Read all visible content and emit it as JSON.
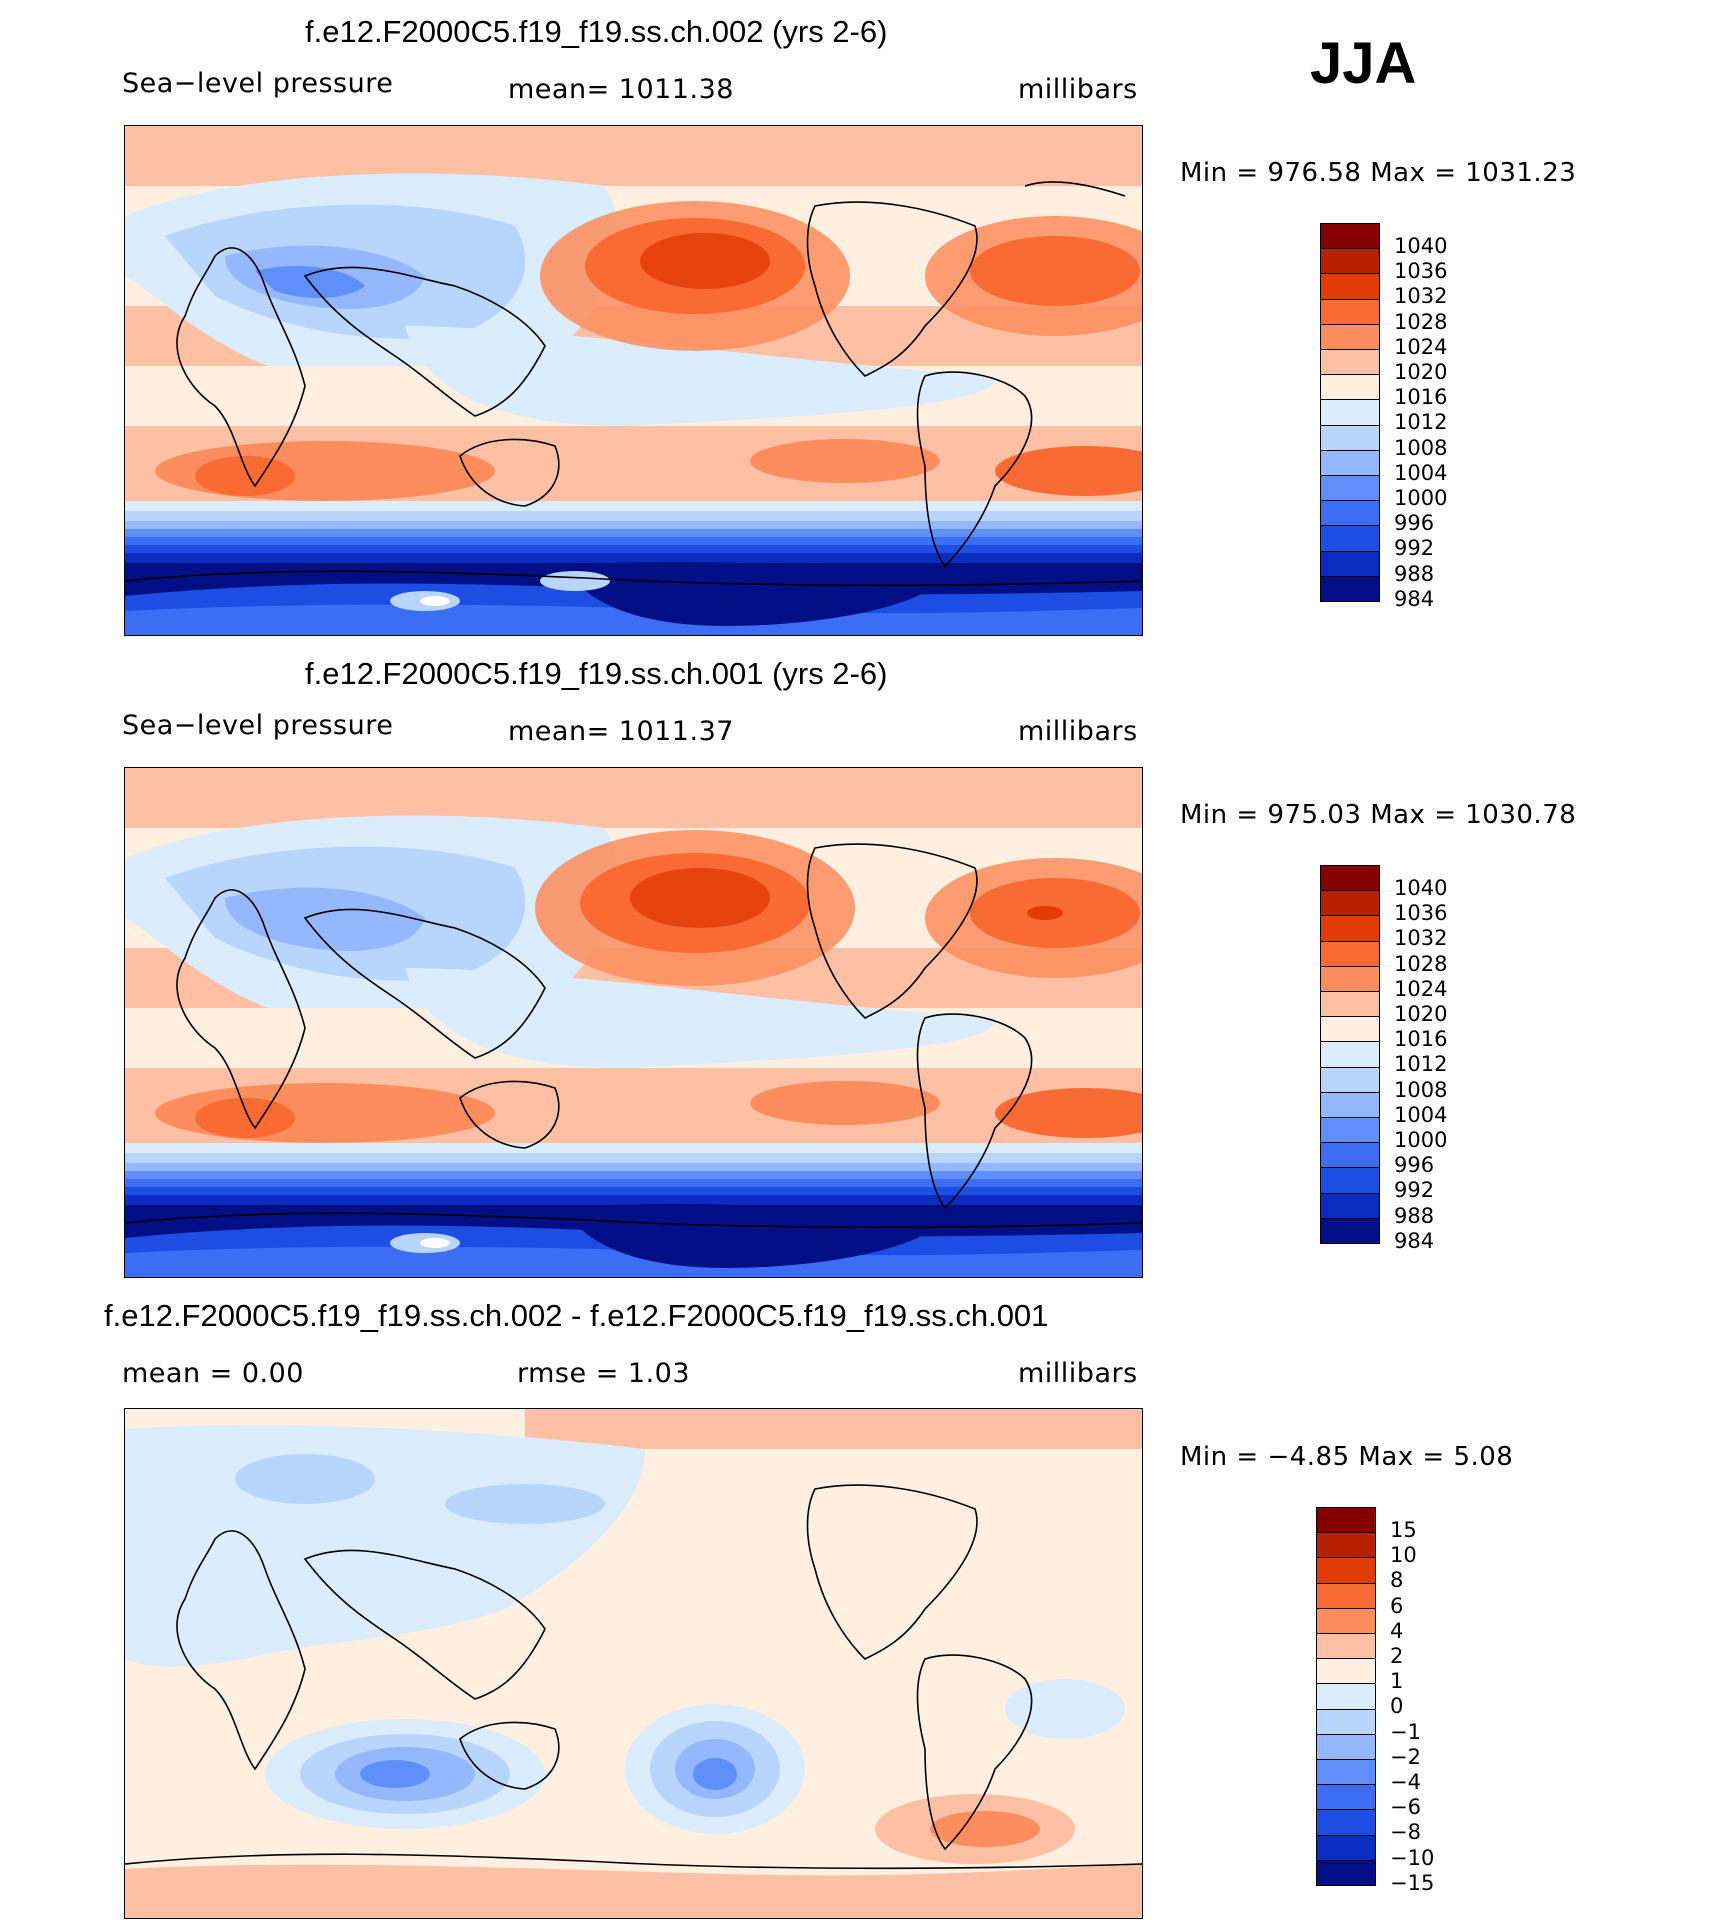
{
  "season": "JJA",
  "panels": [
    {
      "title": "f.e12.F2000C5.f19_f19.ss.ch.002 (yrs 2-6)",
      "left_label": "Sea−level  pressure",
      "mid_label": "mean=  1011.38",
      "units": "millibars",
      "minmax": "Min  =  976.58  Max  =  1031.23",
      "colorbar": {
        "colors": [
          "#870000",
          "#b82100",
          "#e23b04",
          "#fa6a33",
          "#fd8d5d",
          "#fdc0a4",
          "#feefe0",
          "#dbecfc",
          "#b8d5fd",
          "#95b7fd",
          "#5e8ffb",
          "#3c6df4",
          "#1d4de2",
          "#0b2cbe",
          "#000f86"
        ],
        "labels": [
          "1040",
          "1036",
          "1032",
          "1028",
          "1024",
          "1020",
          "1016",
          "1012",
          "1008",
          "1004",
          "1000",
          "996",
          "992",
          "988",
          "984"
        ]
      }
    },
    {
      "title": "f.e12.F2000C5.f19_f19.ss.ch.001 (yrs 2-6)",
      "left_label": "Sea−level  pressure",
      "mid_label": "mean=  1011.37",
      "units": "millibars",
      "minmax": "Min  =  975.03  Max  =  1030.78",
      "colorbar": {
        "colors": [
          "#870000",
          "#b82100",
          "#e23b04",
          "#fa6a33",
          "#fd8d5d",
          "#fdc0a4",
          "#feefe0",
          "#dbecfc",
          "#b8d5fd",
          "#95b7fd",
          "#5e8ffb",
          "#3c6df4",
          "#1d4de2",
          "#0b2cbe",
          "#000f86"
        ],
        "labels": [
          "1040",
          "1036",
          "1032",
          "1028",
          "1024",
          "1020",
          "1016",
          "1012",
          "1008",
          "1004",
          "1000",
          "996",
          "992",
          "988",
          "984"
        ]
      }
    },
    {
      "title": "f.e12.F2000C5.f19_f19.ss.ch.002 - f.e12.F2000C5.f19_f19.ss.ch.001",
      "left_label": "mean  =      0.00",
      "mid_label": "rmse  =      1.03",
      "units": "millibars",
      "minmax": "Min  =    −4.85  Max  =      5.08",
      "colorbar": {
        "colors": [
          "#870000",
          "#b82100",
          "#e23b04",
          "#fa6a33",
          "#fd8d5d",
          "#fdc0a4",
          "#feefe0",
          "#dbecfc",
          "#b8d5fd",
          "#95b7fd",
          "#5e8ffb",
          "#3c6df4",
          "#1d4de2",
          "#0b2cbe",
          "#000f86"
        ],
        "labels": [
          "15",
          "10",
          "8",
          "6",
          "4",
          "2",
          "1",
          "0",
          "−1",
          "−2",
          "−4",
          "−6",
          "−8",
          "−10",
          "−15"
        ]
      }
    }
  ]
}
